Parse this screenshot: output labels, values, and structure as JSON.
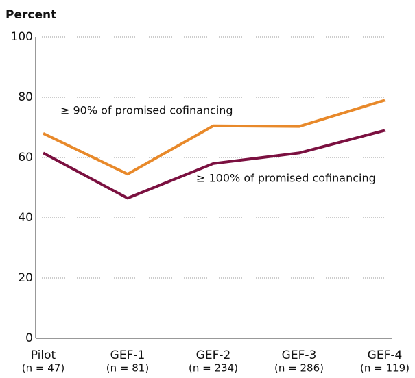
{
  "chart_data": {
    "type": "line",
    "y_axis_label": "Percent",
    "categories": [
      "Pilot",
      "GEF-1",
      "GEF-2",
      "GEF-3",
      "GEF-4"
    ],
    "category_sublabels": [
      "(n = 47)",
      "(n = 81)",
      "(n = 234)",
      "(n = 286)",
      "(n = 119)"
    ],
    "series": [
      {
        "name": "≥ 90% of promised cofinancing",
        "color": "#e8892a",
        "values": [
          68,
          54.5,
          70.5,
          70.3,
          79
        ]
      },
      {
        "name": "≥ 100% of promised cofinancing",
        "color": "#7b1040",
        "values": [
          61.5,
          46.5,
          58,
          61.5,
          69
        ]
      }
    ],
    "ylim": [
      0,
      100
    ],
    "yticks": [
      0,
      20,
      40,
      60,
      80,
      100
    ],
    "grid": true
  }
}
